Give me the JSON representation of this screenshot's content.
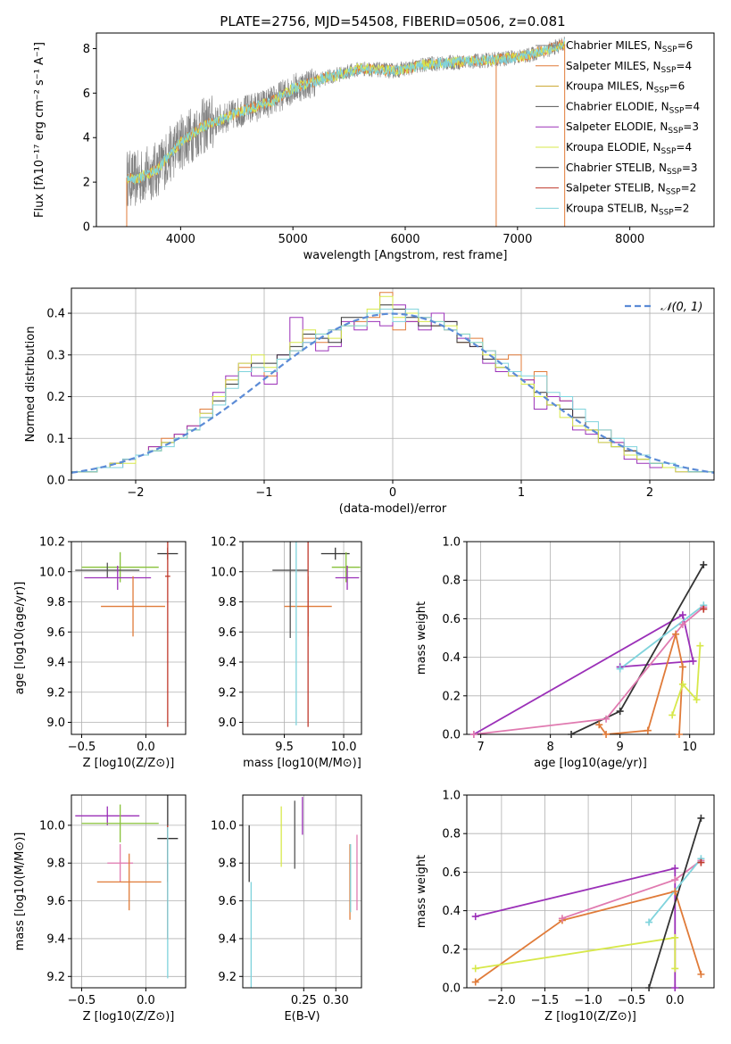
{
  "title": "PLATE=2756, MJD=54508, FIBERID=0506, z=0.081",
  "colors": {
    "chabrier_miles": "#808080",
    "salpeter_miles": "#e07b39",
    "kroupa_miles": "#c9a227",
    "chabrier_elodie": "#555555",
    "salpeter_elodie": "#9b30b8",
    "kroupa_elodie": "#d7e84a",
    "chabrier_stelib": "#333333",
    "salpeter_stelib": "#c0392b",
    "kroupa_stelib": "#7fd3dc",
    "pink": "#e07ab0",
    "green": "#88c23a",
    "normal": "#5b8bd6"
  },
  "legend": [
    {
      "label": "Chabrier MILES, N",
      "sub": "SSP",
      "tail": "=6"
    },
    {
      "label": "Salpeter MILES, N",
      "sub": "SSP",
      "tail": "=4"
    },
    {
      "label": "Kroupa MILES, N",
      "sub": "SSP",
      "tail": "=6"
    },
    {
      "label": "Chabrier ELODIE, N",
      "sub": "SSP",
      "tail": "=4"
    },
    {
      "label": "Salpeter ELODIE, N",
      "sub": "SSP",
      "tail": "=3"
    },
    {
      "label": "Kroupa ELODIE, N",
      "sub": "SSP",
      "tail": "=4"
    },
    {
      "label": "Chabrier STELIB, N",
      "sub": "SSP",
      "tail": "=3"
    },
    {
      "label": "Salpeter STELIB, N",
      "sub": "SSP",
      "tail": "=2"
    },
    {
      "label": "Kroupa STELIB, N",
      "sub": "SSP",
      "tail": "=2"
    }
  ],
  "chart_data": [
    {
      "type": "line",
      "xlabel": "wavelength [Angstrom, rest frame]",
      "ylabel": "Flux [fλ10⁻¹⁷ erg cm⁻² s⁻¹ A⁻¹]",
      "xlim": [
        3250,
        8750
      ],
      "ylim": [
        0,
        8.7
      ],
      "xticks": [
        4000,
        5000,
        6000,
        7000,
        8000
      ],
      "yticks": [
        0,
        2,
        4,
        6,
        8
      ],
      "grid": false,
      "legend_position": "right",
      "spectrum_shape": {
        "x": [
          3520,
          3600,
          3800,
          4000,
          4200,
          4500,
          4800,
          5000,
          5300,
          5600,
          5900,
          6200,
          6500,
          6800,
          7100,
          7300,
          7420
        ],
        "y": [
          2.2,
          2.1,
          2.6,
          3.8,
          4.5,
          5.1,
          5.6,
          6.2,
          6.7,
          7.1,
          7.0,
          7.3,
          7.4,
          7.5,
          7.7,
          8.0,
          8.2
        ]
      }
    },
    {
      "type": "line",
      "xlabel": "(data-model)/error",
      "ylabel": "Normed distribution",
      "xlim": [
        -2.5,
        2.5
      ],
      "ylim": [
        0,
        0.46
      ],
      "xticks": [
        -2,
        -1,
        0,
        1,
        2
      ],
      "yticks": [
        0.0,
        0.1,
        0.2,
        0.3,
        0.4
      ],
      "grid": true,
      "legend": "𝒩(0, 1)",
      "legend_position": "top-right",
      "series": [
        {
          "color": "salpeter_miles",
          "values": [
            0.02,
            0.02,
            0.03,
            0.04,
            0.05,
            0.06,
            0.08,
            0.1,
            0.11,
            0.13,
            0.17,
            0.2,
            0.24,
            0.27,
            0.27,
            0.25,
            0.29,
            0.31,
            0.34,
            0.33,
            0.36,
            0.37,
            0.38,
            0.39,
            0.45,
            0.36,
            0.38,
            0.39,
            0.37,
            0.36,
            0.33,
            0.34,
            0.31,
            0.29,
            0.3,
            0.24,
            0.26,
            0.2,
            0.19,
            0.17,
            0.12,
            0.12,
            0.09,
            0.07,
            0.05,
            0.04,
            0.03,
            0.03,
            0.02,
            0.02
          ]
        },
        {
          "color": "salpeter_elodie",
          "values": [
            0.02,
            0.02,
            0.03,
            0.03,
            0.05,
            0.06,
            0.08,
            0.09,
            0.11,
            0.13,
            0.16,
            0.21,
            0.25,
            0.28,
            0.25,
            0.23,
            0.3,
            0.39,
            0.33,
            0.31,
            0.32,
            0.38,
            0.36,
            0.38,
            0.37,
            0.42,
            0.38,
            0.36,
            0.4,
            0.38,
            0.34,
            0.32,
            0.28,
            0.26,
            0.25,
            0.24,
            0.17,
            0.2,
            0.19,
            0.12,
            0.11,
            0.09,
            0.09,
            0.05,
            0.04,
            0.03,
            0.03,
            0.02,
            0.02,
            0.02
          ]
        },
        {
          "color": "chabrier_stelib",
          "values": [
            0.02,
            0.02,
            0.03,
            0.04,
            0.05,
            0.06,
            0.07,
            0.09,
            0.1,
            0.12,
            0.15,
            0.19,
            0.23,
            0.26,
            0.28,
            0.28,
            0.3,
            0.32,
            0.35,
            0.34,
            0.33,
            0.39,
            0.39,
            0.4,
            0.42,
            0.41,
            0.39,
            0.37,
            0.37,
            0.38,
            0.33,
            0.32,
            0.29,
            0.27,
            0.26,
            0.23,
            0.21,
            0.18,
            0.17,
            0.15,
            0.12,
            0.1,
            0.08,
            0.07,
            0.05,
            0.04,
            0.03,
            0.03,
            0.02,
            0.02
          ]
        },
        {
          "color": "kroupa_elodie",
          "values": [
            0.02,
            0.02,
            0.03,
            0.04,
            0.04,
            0.06,
            0.07,
            0.09,
            0.1,
            0.12,
            0.16,
            0.2,
            0.24,
            0.28,
            0.3,
            0.27,
            0.29,
            0.33,
            0.36,
            0.35,
            0.34,
            0.37,
            0.37,
            0.41,
            0.44,
            0.39,
            0.4,
            0.38,
            0.38,
            0.37,
            0.35,
            0.33,
            0.3,
            0.27,
            0.25,
            0.23,
            0.2,
            0.18,
            0.15,
            0.13,
            0.12,
            0.09,
            0.08,
            0.06,
            0.05,
            0.04,
            0.03,
            0.02,
            0.02,
            0.02
          ]
        },
        {
          "color": "kroupa_stelib",
          "values": [
            0.02,
            0.02,
            0.03,
            0.03,
            0.05,
            0.06,
            0.07,
            0.08,
            0.1,
            0.12,
            0.15,
            0.18,
            0.22,
            0.26,
            0.27,
            0.26,
            0.29,
            0.31,
            0.33,
            0.35,
            0.36,
            0.37,
            0.37,
            0.4,
            0.41,
            0.38,
            0.41,
            0.39,
            0.38,
            0.36,
            0.35,
            0.33,
            0.31,
            0.28,
            0.26,
            0.25,
            0.25,
            0.21,
            0.2,
            0.17,
            0.14,
            0.12,
            0.1,
            0.08,
            0.06,
            0.04,
            0.04,
            0.03,
            0.02,
            0.02
          ]
        }
      ],
      "normal": {
        "mean": 0,
        "sigma": 1
      }
    },
    {
      "type": "scatter",
      "xlabel": "Z [log10(Z/Z⊙)]",
      "ylabel": "age  [log10(age/yr)]",
      "xlim": [
        -0.58,
        0.31
      ],
      "ylim": [
        8.92,
        10.2
      ],
      "xticks": [
        -0.5,
        0.0
      ],
      "yticks": [
        9.0,
        9.2,
        9.4,
        9.6,
        9.8,
        10.0,
        10.2
      ],
      "grid": true,
      "points": [
        {
          "color": "green",
          "x": -0.2,
          "y": 10.03,
          "xerr": 0.3,
          "yerr": 0.1
        },
        {
          "color": "chabrier_stelib",
          "x": 0.17,
          "y": 10.12,
          "xerr": 0.08,
          "yerr": 0.04
        },
        {
          "color": "chabrier_elodie",
          "x": -0.3,
          "y": 10.01,
          "xerr": 0.25,
          "yerr": 0.05
        },
        {
          "color": "salpeter_elodie",
          "x": -0.22,
          "y": 9.96,
          "xerr": 0.26,
          "yerr": 0.08
        },
        {
          "color": "salpeter_miles",
          "x": -0.1,
          "y": 9.77,
          "xerr": 0.25,
          "yerr": 0.2
        },
        {
          "color": "salpeter_stelib",
          "x": 0.17,
          "y": 9.97,
          "xerr": 0.02,
          "yerr": 1.0
        }
      ]
    },
    {
      "type": "scatter",
      "xlabel": "mass [log10(M/M⊙)]",
      "ylabel": "",
      "xlim": [
        9.15,
        10.15
      ],
      "ylim": [
        8.92,
        10.2
      ],
      "xticks": [
        9.5,
        10.0
      ],
      "yticks": [
        9.0,
        9.2,
        9.4,
        9.6,
        9.8,
        10.0,
        10.2
      ],
      "grid": true,
      "points": [
        {
          "color": "chabrier_stelib",
          "x": 9.93,
          "y": 10.12,
          "xerr": 0.12,
          "yerr": 0.04
        },
        {
          "color": "green",
          "x": 10.02,
          "y": 10.03,
          "xerr": 0.12,
          "yerr": 0.1
        },
        {
          "color": "salpeter_elodie",
          "x": 10.03,
          "y": 9.96,
          "xerr": 0.1,
          "yerr": 0.08
        },
        {
          "color": "salpeter_miles",
          "x": 9.7,
          "y": 9.77,
          "xerr": 0.2,
          "yerr": 0.2
        },
        {
          "color": "chabrier_elodie",
          "x": 9.55,
          "y": 10.01,
          "xerr": 0.15,
          "yerr": 0.45
        },
        {
          "color": "salpeter_stelib",
          "x": 9.7,
          "y": 9.97,
          "xerr": 0.0,
          "yerr": 1.0
        },
        {
          "color": "kroupa_stelib",
          "x": 9.6,
          "y": 9.98,
          "xerr": 0.0,
          "yerr": 1.0
        }
      ]
    },
    {
      "type": "line",
      "xlabel": "age  [log10(age/yr)]",
      "ylabel": "mass weight",
      "xlim": [
        6.8,
        10.35
      ],
      "ylim": [
        0,
        1.0
      ],
      "xticks": [
        7,
        8,
        9,
        10
      ],
      "yticks": [
        0.0,
        0.2,
        0.4,
        0.6,
        0.8,
        1.0
      ],
      "grid": true,
      "series": [
        {
          "color": "salpeter_elodie",
          "x": [
            6.9,
            9.9,
            10.05,
            9.0
          ],
          "y": [
            0.0,
            0.62,
            0.38,
            0.35
          ]
        },
        {
          "color": "chabrier_stelib",
          "x": [
            8.3,
            9.0,
            10.2
          ],
          "y": [
            0.0,
            0.12,
            0.88
          ]
        },
        {
          "color": "pink",
          "x": [
            6.9,
            8.8,
            9.9,
            10.2
          ],
          "y": [
            0.0,
            0.08,
            0.57,
            0.66
          ]
        },
        {
          "color": "kroupa_stelib",
          "x": [
            9.0,
            10.2
          ],
          "y": [
            0.34,
            0.67
          ]
        },
        {
          "color": "salpeter_miles",
          "x": [
            8.7,
            8.8,
            9.4,
            9.8,
            9.9,
            9.85
          ],
          "y": [
            0.05,
            0.0,
            0.02,
            0.52,
            0.35,
            0.0
          ]
        },
        {
          "color": "kroupa_elodie",
          "x": [
            9.75,
            9.9,
            10.1,
            10.15
          ],
          "y": [
            0.1,
            0.26,
            0.18,
            0.46
          ]
        },
        {
          "color": "salpeter_stelib",
          "x": [
            10.2
          ],
          "y": [
            0.65
          ]
        }
      ]
    },
    {
      "type": "scatter",
      "xlabel": "Z [log10(Z/Z⊙)]",
      "ylabel": "mass [log10(M/M⊙)]",
      "xlim": [
        -0.58,
        0.31
      ],
      "ylim": [
        9.14,
        10.16
      ],
      "xticks": [
        -0.5,
        0.0
      ],
      "yticks": [
        9.2,
        9.4,
        9.6,
        9.8,
        10.0
      ],
      "grid": true,
      "points": [
        {
          "color": "salpeter_elodie",
          "x": -0.3,
          "y": 10.05,
          "xerr": 0.25,
          "yerr": 0.05
        },
        {
          "color": "green",
          "x": -0.2,
          "y": 10.01,
          "xerr": 0.3,
          "yerr": 0.1
        },
        {
          "color": "chabrier_stelib",
          "x": 0.17,
          "y": 9.93,
          "xerr": 0.08,
          "yerr": 0.23
        },
        {
          "color": "pink",
          "x": -0.2,
          "y": 9.8,
          "xerr": 0.1,
          "yerr": 0.1
        },
        {
          "color": "salpeter_miles",
          "x": -0.13,
          "y": 9.7,
          "xerr": 0.25,
          "yerr": 0.15
        },
        {
          "color": "salpeter_stelib",
          "x": 0.17,
          "y": 9.7,
          "xerr": 0.0,
          "yerr": 0.3
        },
        {
          "color": "kroupa_stelib",
          "x": 0.17,
          "y": 9.59,
          "xerr": 0.0,
          "yerr": 0.4
        }
      ]
    },
    {
      "type": "scatter",
      "xlabel": "E(B-V)",
      "ylabel": "",
      "xlim": [
        0.155,
        0.34
      ],
      "ylim": [
        9.14,
        10.16
      ],
      "xticks": [
        0.25,
        0.3
      ],
      "yticks": [
        9.2,
        9.4,
        9.6,
        9.8,
        10.0
      ],
      "grid": true,
      "points": [
        {
          "color": "chabrier_stelib",
          "x": 0.165,
          "y": 9.85,
          "xerr": 0.0,
          "yerr": 0.15
        },
        {
          "color": "kroupa_stelib",
          "x": 0.168,
          "y": 9.4,
          "xerr": 0.0,
          "yerr": 0.3
        },
        {
          "color": "kroupa_elodie",
          "x": 0.215,
          "y": 9.94,
          "xerr": 0.0,
          "yerr": 0.16
        },
        {
          "color": "chabrier_elodie",
          "x": 0.236,
          "y": 9.95,
          "xerr": 0.0,
          "yerr": 0.18
        },
        {
          "color": "salpeter_elodie",
          "x": 0.248,
          "y": 10.05,
          "xerr": 0.0,
          "yerr": 0.1
        },
        {
          "color": "salpeter_miles",
          "x": 0.322,
          "y": 9.7,
          "xerr": 0.0,
          "yerr": 0.2
        },
        {
          "color": "kroupa_stelib",
          "x": 0.323,
          "y": 9.72,
          "xerr": 0.0,
          "yerr": 0.18
        },
        {
          "color": "pink",
          "x": 0.333,
          "y": 9.75,
          "xerr": 0.0,
          "yerr": 0.2
        }
      ]
    },
    {
      "type": "line",
      "xlabel": "Z [log10(Z/Z⊙)]",
      "ylabel": "mass weight",
      "xlim": [
        -2.4,
        0.45
      ],
      "ylim": [
        0,
        1.0
      ],
      "xticks": [
        -2.0,
        -1.5,
        -1.0,
        -0.5,
        0.0
      ],
      "yticks": [
        0.0,
        0.2,
        0.4,
        0.6,
        0.8,
        1.0
      ],
      "grid": true,
      "series": [
        {
          "color": "salpeter_elodie",
          "x": [
            -2.3,
            0.0,
            0.0
          ],
          "y": [
            0.37,
            0.62,
            0.0
          ]
        },
        {
          "color": "salpeter_miles",
          "x": [
            -2.3,
            -1.3,
            0.0,
            0.3
          ],
          "y": [
            0.03,
            0.35,
            0.5,
            0.07
          ]
        },
        {
          "color": "pink",
          "x": [
            -1.3,
            0.0,
            0.3
          ],
          "y": [
            0.36,
            0.56,
            0.66
          ]
        },
        {
          "color": "kroupa_elodie",
          "x": [
            -2.3,
            0.0,
            0.0
          ],
          "y": [
            0.1,
            0.26,
            0.1
          ]
        },
        {
          "color": "chabrier_stelib",
          "x": [
            -0.3,
            0.3
          ],
          "y": [
            0.0,
            0.88
          ]
        },
        {
          "color": "kroupa_stelib",
          "x": [
            -0.3,
            0.3
          ],
          "y": [
            0.34,
            0.67
          ]
        },
        {
          "color": "salpeter_stelib",
          "x": [
            0.3
          ],
          "y": [
            0.65
          ]
        }
      ]
    }
  ]
}
